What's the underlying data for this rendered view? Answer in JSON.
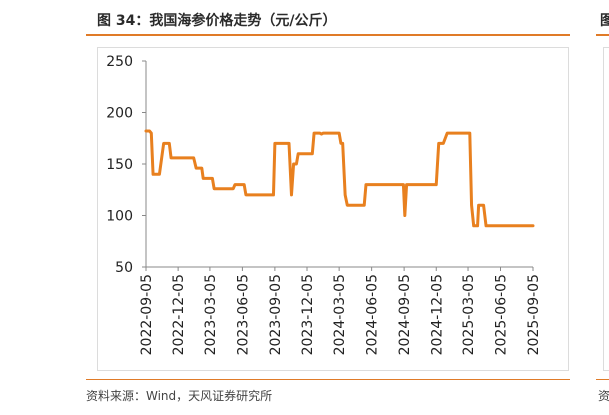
{
  "figure": {
    "title": "图 34：我国海参价格走势（元/公斤）",
    "source": "资料来源：Wind，天风证券研究所",
    "right_clip_title": "图",
    "right_clip_source": "资"
  },
  "colors": {
    "accent": "#e07b28",
    "line": "#e8801f"
  },
  "chart_data": {
    "type": "line",
    "title": "我国海参价格走势（元/公斤）",
    "xlabel": "",
    "ylabel": "",
    "ylim": [
      50,
      250
    ],
    "yticks": [
      50,
      100,
      150,
      200,
      250
    ],
    "xlim": [
      "2022-09-05",
      "2025-09-05"
    ],
    "xticks": [
      "2022-09-05",
      "2022-12-05",
      "2023-03-05",
      "2023-06-05",
      "2023-09-05",
      "2023-12-05",
      "2024-03-05",
      "2024-06-05",
      "2024-09-05",
      "2024-12-05",
      "2025-03-05",
      "2025-06-05",
      "2025-09-05"
    ],
    "grid": false,
    "legend": "none",
    "series": [
      {
        "points": [
          [
            "2022-09-05",
            182
          ],
          [
            "2022-09-15",
            182
          ],
          [
            "2022-09-20",
            180
          ],
          [
            "2022-09-25",
            140
          ],
          [
            "2022-10-13",
            140
          ],
          [
            "2022-10-25",
            170
          ],
          [
            "2022-11-10",
            170
          ],
          [
            "2022-11-15",
            156
          ],
          [
            "2023-01-18",
            156
          ],
          [
            "2023-01-25",
            146
          ],
          [
            "2023-02-10",
            146
          ],
          [
            "2023-02-14",
            136
          ],
          [
            "2023-03-12",
            136
          ],
          [
            "2023-03-17",
            126
          ],
          [
            "2023-05-10",
            126
          ],
          [
            "2023-05-15",
            130
          ],
          [
            "2023-06-10",
            130
          ],
          [
            "2023-06-15",
            120
          ],
          [
            "2023-09-01",
            120
          ],
          [
            "2023-09-05",
            170
          ],
          [
            "2023-10-15",
            170
          ],
          [
            "2023-10-22",
            120
          ],
          [
            "2023-10-28",
            150
          ],
          [
            "2023-11-05",
            150
          ],
          [
            "2023-11-10",
            160
          ],
          [
            "2023-12-20",
            160
          ],
          [
            "2023-12-25",
            180
          ],
          [
            "2024-01-10",
            180
          ],
          [
            "2024-01-15",
            179
          ],
          [
            "2024-01-20",
            180
          ],
          [
            "2024-03-05",
            180
          ],
          [
            "2024-03-10",
            170
          ],
          [
            "2024-03-15",
            170
          ],
          [
            "2024-03-22",
            120
          ],
          [
            "2024-03-28",
            110
          ],
          [
            "2024-05-15",
            110
          ],
          [
            "2024-05-20",
            130
          ],
          [
            "2024-09-03",
            130
          ],
          [
            "2024-09-07",
            100
          ],
          [
            "2024-09-12",
            130
          ],
          [
            "2024-12-05",
            130
          ],
          [
            "2024-12-12",
            170
          ],
          [
            "2024-12-25",
            170
          ],
          [
            "2025-01-05",
            180
          ],
          [
            "2025-03-10",
            180
          ],
          [
            "2025-03-15",
            110
          ],
          [
            "2025-03-21",
            90
          ],
          [
            "2025-04-01",
            90
          ],
          [
            "2025-04-04",
            110
          ],
          [
            "2025-04-18",
            110
          ],
          [
            "2025-04-25",
            90
          ],
          [
            "2025-09-05",
            90
          ]
        ]
      }
    ]
  }
}
